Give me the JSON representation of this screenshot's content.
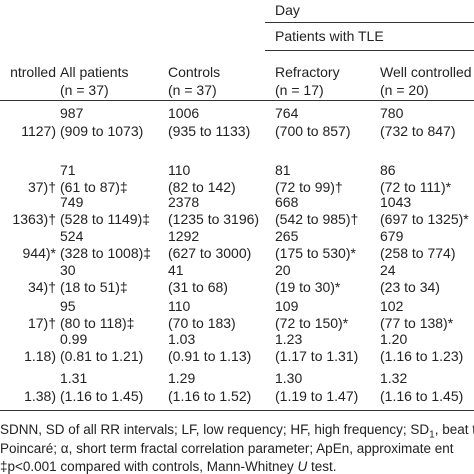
{
  "header": {
    "day": "Day",
    "group": "Patients with TLE",
    "columns": [
      "ntrolled",
      "All patients",
      "Controls",
      "Refractory",
      "Well controlled"
    ],
    "counts": [
      null,
      "(n = 37)",
      "(n = 37)",
      "(n = 17)",
      "(n = 20)"
    ]
  },
  "table": {
    "rows": [
      [
        null,
        "987",
        "1006",
        "764",
        "780"
      ],
      [
        "1127)",
        "(909 to 1073)",
        "(935 to 1133)",
        "(700 to 857)",
        "(732 to 847)"
      ],
      [
        null,
        "71",
        "110",
        "81",
        "86"
      ],
      [
        "37)†",
        "(61 to 87)‡",
        "(82 to 142)",
        "(72 to 99)†",
        "(72 to 111)*"
      ],
      [
        null,
        "749",
        "2378",
        "668",
        "1043"
      ],
      [
        "1363)†",
        "(528 to 1149)‡",
        "(1235 to 3196)",
        "(542 to 985)†",
        "(697 to 1325)*"
      ],
      [
        null,
        "524",
        "1292",
        "265",
        "679"
      ],
      [
        "944)*",
        "(328 to 1008)‡",
        "(627 to 3000)",
        "(175 to 530)*",
        "(258 to 774)"
      ],
      [
        null,
        "30",
        "41",
        "20",
        "24"
      ],
      [
        "34)†",
        "(18 to 51)‡",
        "(31 to 68)",
        "(19 to 30)*",
        "(23 to 34)"
      ],
      [
        null,
        "95",
        "110",
        "109",
        "102"
      ],
      [
        "17)†",
        "(80 to 118)‡",
        "(70 to 183)",
        "(72 to 150)*",
        "(77 to 138)*"
      ],
      [
        null,
        "0.99",
        "1.03",
        "1.23",
        "1.20"
      ],
      [
        "1.18)",
        "(0.81 to 1.21)",
        "(0.91 to 1.13)",
        "(1.17 to 1.31)",
        "(1.16 to 1.23)"
      ],
      [
        null,
        "1.31",
        "1.29",
        "1.30",
        "1.32"
      ],
      [
        "1.38)",
        "(1.16 to 1.45)",
        "(1.16 to 1.52)",
        "(1.19 to 1.47)",
        "(1.16 to 1.45)"
      ]
    ]
  },
  "footnotes": [
    [
      "SDNN, SD of all RR intervals; LF, low requency; HF, high frequency; SD",
      "1",
      ", beat t"
    ],
    [
      "Poincaré; α, short term fractal correlation parameter; ApEn, approximate ent"
    ],
    [
      "‡p<0.001 compared with controls, Mann-Whitney ",
      "U",
      " test."
    ]
  ]
}
